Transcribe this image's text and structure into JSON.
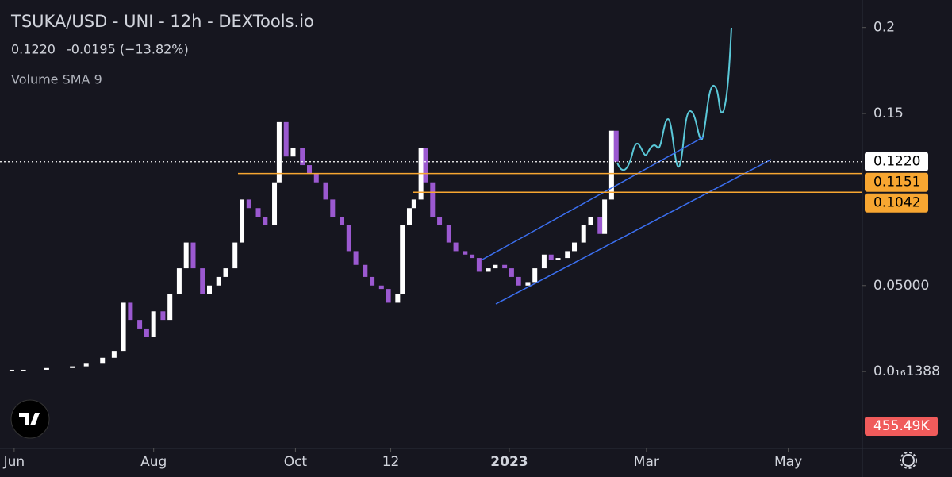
{
  "chart_data": {
    "type": "candlestick",
    "title": "TSUKA/USD - UNI - 12h - DEXTools.io",
    "price_text": "0.1220",
    "change_text": "-0.0195 (−13.82%)",
    "indicator": "Volume SMA 9",
    "x": [
      0,
      5,
      15,
      26,
      32,
      39,
      44,
      48,
      51,
      55,
      58,
      61,
      65,
      68,
      72,
      75,
      78,
      82,
      85,
      89,
      92,
      96,
      99,
      102,
      106,
      109,
      113,
      115,
      118,
      121,
      125,
      128,
      131,
      135,
      138,
      142,
      145,
      148,
      152,
      155,
      159,
      162,
      166,
      168,
      171,
      173,
      176,
      178,
      181,
      184,
      188,
      191,
      195,
      198,
      201,
      205,
      208,
      212,
      215,
      218,
      222,
      225,
      229,
      232,
      235,
      239,
      242,
      246,
      249,
      253,
      255,
      258,
      260
    ],
    "values": [
      0.001,
      0.001,
      0.002,
      0.003,
      0.005,
      0.008,
      0.012,
      0.04,
      0.03,
      0.025,
      0.02,
      0.035,
      0.03,
      0.045,
      0.06,
      0.075,
      0.06,
      0.045,
      0.05,
      0.055,
      0.06,
      0.075,
      0.1,
      0.095,
      0.09,
      0.085,
      0.11,
      0.145,
      0.125,
      0.13,
      0.12,
      0.115,
      0.11,
      0.1,
      0.09,
      0.085,
      0.07,
      0.062,
      0.055,
      0.05,
      0.048,
      0.04,
      0.045,
      0.085,
      0.095,
      0.1,
      0.13,
      0.11,
      0.09,
      0.085,
      0.075,
      0.07,
      0.068,
      0.066,
      0.058,
      0.06,
      0.062,
      0.06,
      0.055,
      0.05,
      0.052,
      0.06,
      0.068,
      0.065,
      0.066,
      0.07,
      0.075,
      0.085,
      0.09,
      0.08,
      0.1,
      0.14,
      0.122
    ],
    "up_color": "#ffffff",
    "down_color": "#9b59d0",
    "xlim": [
      -5.1,
      365.2
    ],
    "xticks": [
      {
        "value": 1,
        "label": "Jun"
      },
      {
        "value": 61,
        "label": "Aug"
      },
      {
        "value": 122,
        "label": "Oct"
      },
      {
        "value": 163,
        "label": "12"
      },
      {
        "value": 214,
        "label": "2023"
      },
      {
        "value": 273,
        "label": "Mar"
      },
      {
        "value": 334,
        "label": "May"
      }
    ],
    "ylim": [
      -0.0447,
      0.216
    ],
    "yticks": [
      0.2,
      0.15,
      {
        "value": 0.05,
        "label": "0.05000"
      },
      {
        "value": 1.388e-18,
        "label": "0.0₁₆1388"
      }
    ],
    "price_lines": [
      {
        "value": 0.122,
        "label": "0.1220",
        "color": "#ffffff"
      },
      {
        "value": 0.1151,
        "label": "0.1151",
        "color": "#f7a631"
      },
      {
        "value": 0.1042,
        "label": "0.1042",
        "color": "#f7a631"
      }
    ],
    "volume": {
      "value": 455490,
      "value_label": "455.49K",
      "color": "#f05b5b"
    }
  }
}
